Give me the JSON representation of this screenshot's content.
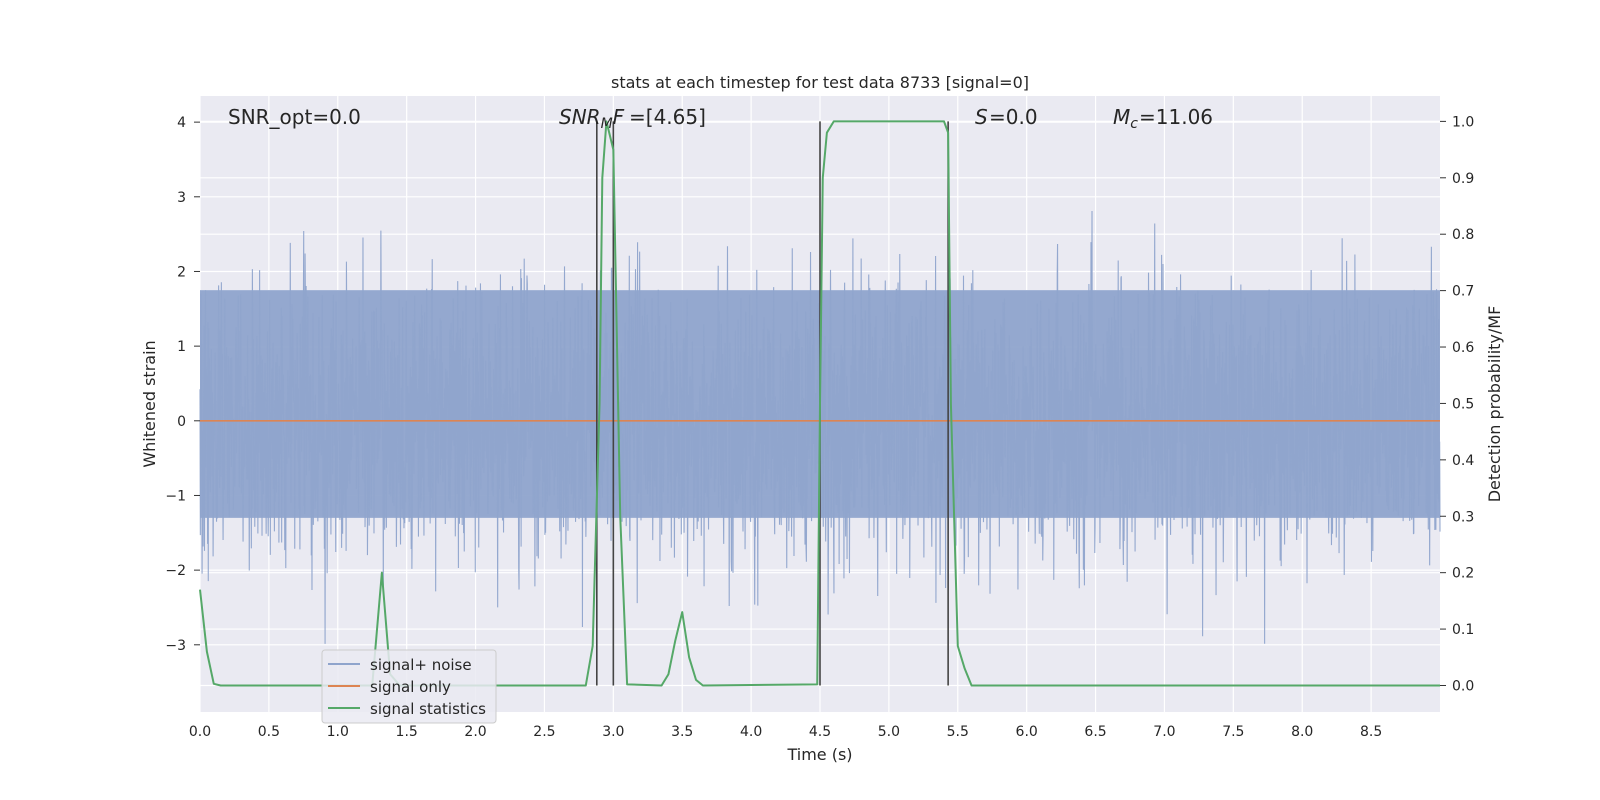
{
  "chart_data": {
    "type": "line",
    "title": "stats at each timestep for test data 8733 [signal=0]",
    "xlabel": "Time (s)",
    "ylabel_left": "Whitened strain",
    "ylabel_right": "Detection probability/MF",
    "xlim": [
      0.0,
      9.0
    ],
    "ylim_left": [
      -3.9,
      4.35
    ],
    "ylim_right": [
      -0.047,
      1.045
    ],
    "x_ticks": [
      "0.0",
      "0.5",
      "1.0",
      "1.5",
      "2.0",
      "2.5",
      "3.0",
      "3.5",
      "4.0",
      "4.5",
      "5.0",
      "5.5",
      "6.0",
      "6.5",
      "7.0",
      "7.5",
      "8.0",
      "8.5"
    ],
    "y_left_ticks": [
      "−3",
      "−2",
      "−1",
      "0",
      "1",
      "2",
      "3",
      "4"
    ],
    "y_right_ticks": [
      "0.0",
      "0.1",
      "0.2",
      "0.3",
      "0.4",
      "0.5",
      "0.6",
      "0.7",
      "0.8",
      "0.9",
      "1.0"
    ],
    "grid": true,
    "legend_position": "lower-left",
    "annotations": {
      "snr_opt": "SNR_opt=0.0",
      "snr_mf": "[4.65]",
      "s_value": "=0.0",
      "mc_value": "=11.06"
    },
    "series": [
      {
        "name": "signal+ noise",
        "color": "#8fa4cc",
        "axis": "left",
        "description_values": "dense noise between about -3.4 and 4.0",
        "band": {
          "core_low": -1.3,
          "core_high": 1.75,
          "spike_max": 4.0,
          "spike_min": -3.4
        }
      },
      {
        "name": "signal only",
        "color": "#dd8452",
        "axis": "left",
        "x": [
          0.0,
          9.0
        ],
        "y": [
          0.0,
          0.0
        ]
      },
      {
        "name": "signal statistics",
        "color": "#55a868",
        "axis": "right",
        "x": [
          0.0,
          0.05,
          0.1,
          0.15,
          0.2,
          1.25,
          1.32,
          1.38,
          1.45,
          2.8,
          2.85,
          2.9,
          2.92,
          2.95,
          3.0,
          3.05,
          3.1,
          3.35,
          3.4,
          3.45,
          3.5,
          3.55,
          3.6,
          3.65,
          4.48,
          4.5,
          4.52,
          4.55,
          4.6,
          4.65,
          5.4,
          5.43,
          5.45,
          5.5,
          5.55,
          5.6,
          9.0
        ],
        "y": [
          0.17,
          0.06,
          0.003,
          0.0,
          0.0,
          0.0,
          0.2,
          0.02,
          0.0,
          0.0,
          0.07,
          0.5,
          0.9,
          1.0,
          0.95,
          0.3,
          0.002,
          0.0,
          0.02,
          0.08,
          0.13,
          0.05,
          0.01,
          0.0,
          0.002,
          0.5,
          0.9,
          0.98,
          1.0,
          1.0,
          1.0,
          0.98,
          0.5,
          0.07,
          0.03,
          0.0,
          0.0
        ]
      }
    ],
    "vertical_lines": [
      {
        "x": 2.88,
        "color": "#444444"
      },
      {
        "x": 3.0,
        "color": "#444444"
      },
      {
        "x": 4.5,
        "color": "#444444"
      },
      {
        "x": 5.43,
        "color": "#444444"
      }
    ]
  }
}
